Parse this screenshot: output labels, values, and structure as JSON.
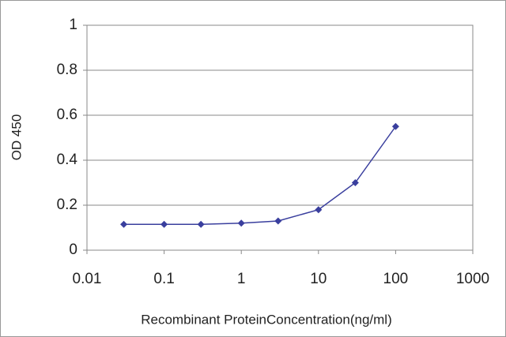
{
  "chart_data": {
    "type": "line",
    "x_label": "Recombinant ProteinConcentration(ng/ml)",
    "y_label": "OD 450",
    "x": [
      0.03,
      0.1,
      0.3,
      1,
      3,
      10,
      30,
      100
    ],
    "series": [
      {
        "color": "#3a3f9e",
        "values": [
          0.115,
          0.115,
          0.115,
          0.12,
          0.13,
          0.18,
          0.3,
          0.55
        ]
      }
    ],
    "xlim": [
      0.01,
      1000
    ],
    "xticks": [
      0.01,
      0.1,
      1,
      10,
      100,
      1000
    ],
    "ylim": [
      0,
      1
    ],
    "yticks": [
      0,
      0.2,
      0.4,
      0.6,
      0.8,
      1
    ],
    "x_log": true,
    "grid": true
  }
}
